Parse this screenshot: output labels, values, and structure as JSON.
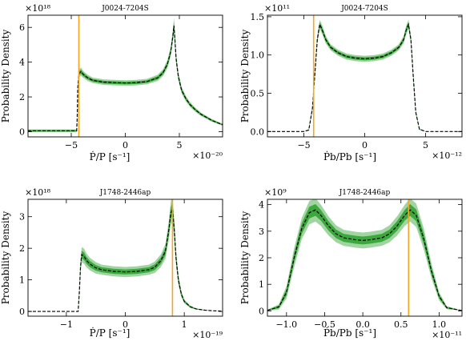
{
  "chart_data": [
    {
      "type": "line",
      "title": "J0024-7204S",
      "ylabel": "Probability Density",
      "xlabel": "Ṗ/P  [s⁻¹]",
      "x_exponent": "×10⁻²⁰",
      "y_exponent": "×10¹⁸",
      "xlim": [
        -9,
        9
      ],
      "ylim": [
        -0.3,
        6.7
      ],
      "xticks": [
        -5,
        0,
        5
      ],
      "xtick_labels": [
        "−5",
        "0",
        "5"
      ],
      "yticks": [
        0,
        2,
        4,
        6
      ],
      "ytick_labels": [
        "0",
        "2",
        "4",
        "6"
      ],
      "vline": -4.3,
      "vline_color": "#f5a623",
      "band_color": "#2ca02c",
      "curve": {
        "x": [
          -9,
          -4.5,
          -4.45,
          -4.4,
          -4.3,
          -4.1,
          -3.9,
          -3.5,
          -3,
          -2,
          -1,
          0,
          1,
          2,
          3,
          3.5,
          3.9,
          4.2,
          4.4,
          4.5,
          4.6,
          4.7,
          4.9,
          5.2,
          5.6,
          6,
          6.5,
          7,
          8,
          9
        ],
        "y": [
          0.05,
          0.05,
          0.8,
          2.5,
          3.35,
          3.45,
          3.3,
          3.1,
          2.95,
          2.85,
          2.82,
          2.8,
          2.82,
          2.88,
          3.1,
          3.4,
          3.9,
          4.6,
          5.5,
          6.1,
          5.2,
          4.2,
          3.2,
          2.4,
          1.9,
          1.55,
          1.25,
          1.0,
          0.65,
          0.4
        ],
        "band": [
          0.04,
          0.04,
          0.06,
          0.1,
          0.12,
          0.12,
          0.1,
          0.09,
          0.08,
          0.08,
          0.08,
          0.08,
          0.08,
          0.08,
          0.09,
          0.1,
          0.12,
          0.14,
          0.18,
          0.22,
          0.2,
          0.15,
          0.12,
          0.1,
          0.08,
          0.07,
          0.06,
          0.05,
          0.04,
          0.03
        ]
      }
    },
    {
      "type": "line",
      "title": "J0024-7204S",
      "ylabel": "Probability Density",
      "xlabel": "Ṗb/Pb  [s⁻¹]",
      "x_exponent": "×10⁻¹²",
      "y_exponent": "×10¹¹",
      "xlim": [
        -8,
        8
      ],
      "ylim": [
        -0.07,
        1.52
      ],
      "xticks": [
        -5,
        0,
        5
      ],
      "xtick_labels": [
        "−5",
        "0",
        "5"
      ],
      "yticks": [
        0,
        0.5,
        1.0,
        1.5
      ],
      "ytick_labels": [
        "0.0",
        "0.5",
        "1.0",
        "1.5"
      ],
      "vline": -4.2,
      "vline_color": "#f5a623",
      "band_color": "#2ca02c",
      "curve": {
        "x": [
          -8,
          -5,
          -4.6,
          -4.3,
          -4.1,
          -3.9,
          -3.7,
          -3.5,
          -3.2,
          -2.8,
          -2.2,
          -1.5,
          -0.8,
          0,
          0.8,
          1.5,
          2.2,
          2.8,
          3.2,
          3.4,
          3.6,
          3.8,
          4.0,
          4.2,
          4.5,
          5,
          8
        ],
        "y": [
          0.0,
          0.0,
          0.02,
          0.3,
          0.75,
          1.2,
          1.4,
          1.33,
          1.2,
          1.1,
          1.03,
          0.98,
          0.96,
          0.95,
          0.96,
          0.98,
          1.03,
          1.1,
          1.2,
          1.32,
          1.4,
          1.2,
          0.7,
          0.25,
          0.03,
          0.0,
          0.0
        ],
        "band": [
          0.0,
          0.0,
          0.005,
          0.015,
          0.02,
          0.025,
          0.03,
          0.03,
          0.025,
          0.02,
          0.02,
          0.02,
          0.02,
          0.02,
          0.02,
          0.02,
          0.02,
          0.02,
          0.025,
          0.03,
          0.03,
          0.025,
          0.02,
          0.015,
          0.005,
          0.0,
          0.0
        ]
      }
    },
    {
      "type": "line",
      "title": "J1748-2446ap",
      "ylabel": "Probability Density",
      "xlabel": "Ṗ/P  [s⁻¹]",
      "x_exponent": "×10⁻¹⁹",
      "y_exponent": "×10¹⁸",
      "xlim": [
        -1.65,
        1.65
      ],
      "ylim": [
        -0.15,
        3.55
      ],
      "xticks": [
        -1,
        0,
        1
      ],
      "xtick_labels": [
        "−1",
        "0",
        "1"
      ],
      "yticks": [
        0,
        1,
        2,
        3
      ],
      "ytick_labels": [
        "0",
        "1",
        "2",
        "3"
      ],
      "vline": 0.8,
      "vline_color": "#f5a623",
      "band_color": "#2ca02c",
      "curve": {
        "x": [
          -1.65,
          -0.8,
          -0.78,
          -0.76,
          -0.74,
          -0.7,
          -0.66,
          -0.6,
          -0.5,
          -0.4,
          -0.2,
          0,
          0.2,
          0.4,
          0.5,
          0.6,
          0.68,
          0.74,
          0.77,
          0.8,
          0.83,
          0.86,
          0.9,
          0.95,
          1.0,
          1.1,
          1.2,
          1.35,
          1.5,
          1.65
        ],
        "y": [
          0.0,
          0.0,
          0.6,
          1.4,
          1.8,
          1.75,
          1.62,
          1.5,
          1.38,
          1.32,
          1.27,
          1.25,
          1.27,
          1.32,
          1.4,
          1.6,
          1.9,
          2.6,
          3.1,
          3.25,
          2.6,
          1.7,
          1.0,
          0.55,
          0.32,
          0.15,
          0.08,
          0.04,
          0.02,
          0.01
        ],
        "band": [
          0.0,
          0.0,
          0.05,
          0.1,
          0.12,
          0.12,
          0.11,
          0.1,
          0.09,
          0.08,
          0.08,
          0.08,
          0.08,
          0.08,
          0.09,
          0.1,
          0.12,
          0.15,
          0.18,
          0.2,
          0.16,
          0.12,
          0.08,
          0.05,
          0.03,
          0.02,
          0.01,
          0.005,
          0.0,
          0.0
        ]
      }
    },
    {
      "type": "line",
      "title": "J1748-2446ap",
      "ylabel": "Probability Density",
      "xlabel": "Ṗb/Pb  [s⁻¹]",
      "x_exponent": "×10⁻¹¹",
      "y_exponent": "×10⁹",
      "xlim": [
        -1.25,
        1.3
      ],
      "ylim": [
        -0.2,
        4.2
      ],
      "xticks": [
        -1.0,
        -0.5,
        0,
        0.5,
        1.0
      ],
      "xtick_labels": [
        "−1.0",
        "−0.5",
        "0.0",
        "0.5",
        "1.0"
      ],
      "yticks": [
        0,
        1,
        2,
        3,
        4
      ],
      "ytick_labels": [
        "0",
        "1",
        "2",
        "3",
        "4"
      ],
      "vline": 0.6,
      "vline_color": "#f5a623",
      "band_color": "#2ca02c",
      "curve": {
        "x": [
          -1.25,
          -1.1,
          -1.0,
          -0.9,
          -0.8,
          -0.7,
          -0.62,
          -0.55,
          -0.45,
          -0.35,
          -0.25,
          -0.1,
          0,
          0.1,
          0.25,
          0.35,
          0.45,
          0.55,
          0.62,
          0.7,
          0.8,
          0.9,
          1.0,
          1.1,
          1.3
        ],
        "y": [
          0.02,
          0.15,
          0.7,
          2.0,
          3.1,
          3.7,
          3.8,
          3.6,
          3.2,
          2.9,
          2.75,
          2.68,
          2.65,
          2.68,
          2.75,
          2.9,
          3.2,
          3.6,
          3.8,
          3.6,
          2.7,
          1.5,
          0.55,
          0.12,
          0.01
        ],
        "band": [
          0.01,
          0.05,
          0.12,
          0.18,
          0.2,
          0.22,
          0.22,
          0.2,
          0.18,
          0.16,
          0.15,
          0.15,
          0.15,
          0.15,
          0.15,
          0.16,
          0.18,
          0.2,
          0.22,
          0.22,
          0.2,
          0.14,
          0.08,
          0.03,
          0.0
        ]
      }
    }
  ]
}
